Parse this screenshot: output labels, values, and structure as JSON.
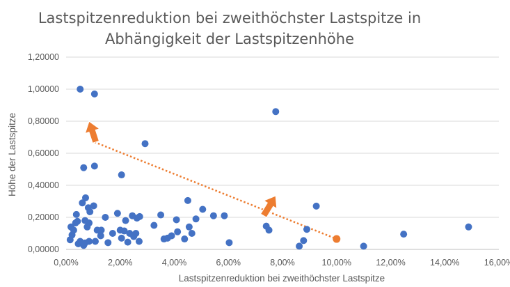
{
  "chart_data": {
    "type": "scatter",
    "title_lines": [
      "Lastspitzenreduktion bei zweithöchster Lastspitze in",
      "Abhängigkeit der Lastspitzenhöhe"
    ],
    "xlabel": "Lastspitzenreduktion bei zweithöchster Lastspitze",
    "ylabel": "Höhe der Lastspitze",
    "xlim": [
      0,
      0.16
    ],
    "ylim": [
      0,
      1.2
    ],
    "x_ticks": [
      0,
      0.02,
      0.04,
      0.06,
      0.08,
      0.1,
      0.12,
      0.14,
      0.16
    ],
    "x_tick_labels": [
      "0,00%",
      "2,00%",
      "4,00%",
      "6,00%",
      "8,00%",
      "10,00%",
      "12,00%",
      "14,00%",
      "16,00%"
    ],
    "y_ticks": [
      0,
      0.2,
      0.4,
      0.6,
      0.8,
      1.0,
      1.2
    ],
    "y_tick_labels": [
      "0,00000",
      "0,20000",
      "0,40000",
      "0,60000",
      "0,80000",
      "1,00000",
      "1,20000"
    ],
    "grid": "horizontal",
    "point_color": "#4472c4",
    "highlight_color": "#ed7d31",
    "points": [
      [
        0.0052,
        1.0
      ],
      [
        0.0105,
        0.97
      ],
      [
        0.0775,
        0.86
      ],
      [
        0.0292,
        0.66
      ],
      [
        0.0065,
        0.51
      ],
      [
        0.0105,
        0.52
      ],
      [
        0.0205,
        0.465
      ],
      [
        0.0072,
        0.322
      ],
      [
        0.006,
        0.29
      ],
      [
        0.0082,
        0.26
      ],
      [
        0.0102,
        0.272
      ],
      [
        0.0038,
        0.218
      ],
      [
        0.0042,
        0.175
      ],
      [
        0.007,
        0.18
      ],
      [
        0.0085,
        0.165
      ],
      [
        0.0078,
        0.14
      ],
      [
        0.0088,
        0.235
      ],
      [
        0.0018,
        0.14
      ],
      [
        0.0028,
        0.12
      ],
      [
        0.0022,
        0.09
      ],
      [
        0.0015,
        0.06
      ],
      [
        0.0035,
        0.165
      ],
      [
        0.0045,
        0.035
      ],
      [
        0.0052,
        0.05
      ],
      [
        0.0058,
        0.04
      ],
      [
        0.0065,
        0.025
      ],
      [
        0.007,
        0.04
      ],
      [
        0.0085,
        0.05
      ],
      [
        0.0108,
        0.05
      ],
      [
        0.0115,
        0.12
      ],
      [
        0.013,
        0.12
      ],
      [
        0.0128,
        0.085
      ],
      [
        0.0145,
        0.2
      ],
      [
        0.0155,
        0.042
      ],
      [
        0.0172,
        0.1
      ],
      [
        0.019,
        0.225
      ],
      [
        0.02,
        0.12
      ],
      [
        0.0205,
        0.07
      ],
      [
        0.0215,
        0.115
      ],
      [
        0.022,
        0.18
      ],
      [
        0.0228,
        0.045
      ],
      [
        0.0235,
        0.1
      ],
      [
        0.0245,
        0.21
      ],
      [
        0.025,
        0.08
      ],
      [
        0.0258,
        0.1
      ],
      [
        0.0262,
        0.195
      ],
      [
        0.027,
        0.05
      ],
      [
        0.0272,
        0.205
      ],
      [
        0.0325,
        0.15
      ],
      [
        0.035,
        0.215
      ],
      [
        0.0362,
        0.065
      ],
      [
        0.0375,
        0.07
      ],
      [
        0.039,
        0.085
      ],
      [
        0.0408,
        0.185
      ],
      [
        0.0412,
        0.11
      ],
      [
        0.0438,
        0.065
      ],
      [
        0.045,
        0.305
      ],
      [
        0.0455,
        0.14
      ],
      [
        0.0465,
        0.1
      ],
      [
        0.048,
        0.19
      ],
      [
        0.0505,
        0.25
      ],
      [
        0.0545,
        0.21
      ],
      [
        0.0585,
        0.21
      ],
      [
        0.0603,
        0.042
      ],
      [
        0.074,
        0.145
      ],
      [
        0.075,
        0.12
      ],
      [
        0.0862,
        0.02
      ],
      [
        0.0878,
        0.055
      ],
      [
        0.089,
        0.125
      ],
      [
        0.0925,
        0.27
      ],
      [
        0.11,
        0.02
      ],
      [
        0.1248,
        0.095
      ],
      [
        0.1488,
        0.14
      ]
    ],
    "highlight_point": [
      0.1,
      0.065
    ],
    "trend_line": [
      [
        0.0105,
        0.67
      ],
      [
        0.1,
        0.065
      ]
    ],
    "arrows": [
      {
        "tail": [
          0.011,
          0.67
        ],
        "head": [
          0.0085,
          0.8
        ]
      },
      {
        "tail": [
          0.073,
          0.21
        ],
        "head": [
          0.0775,
          0.335
        ]
      }
    ]
  }
}
